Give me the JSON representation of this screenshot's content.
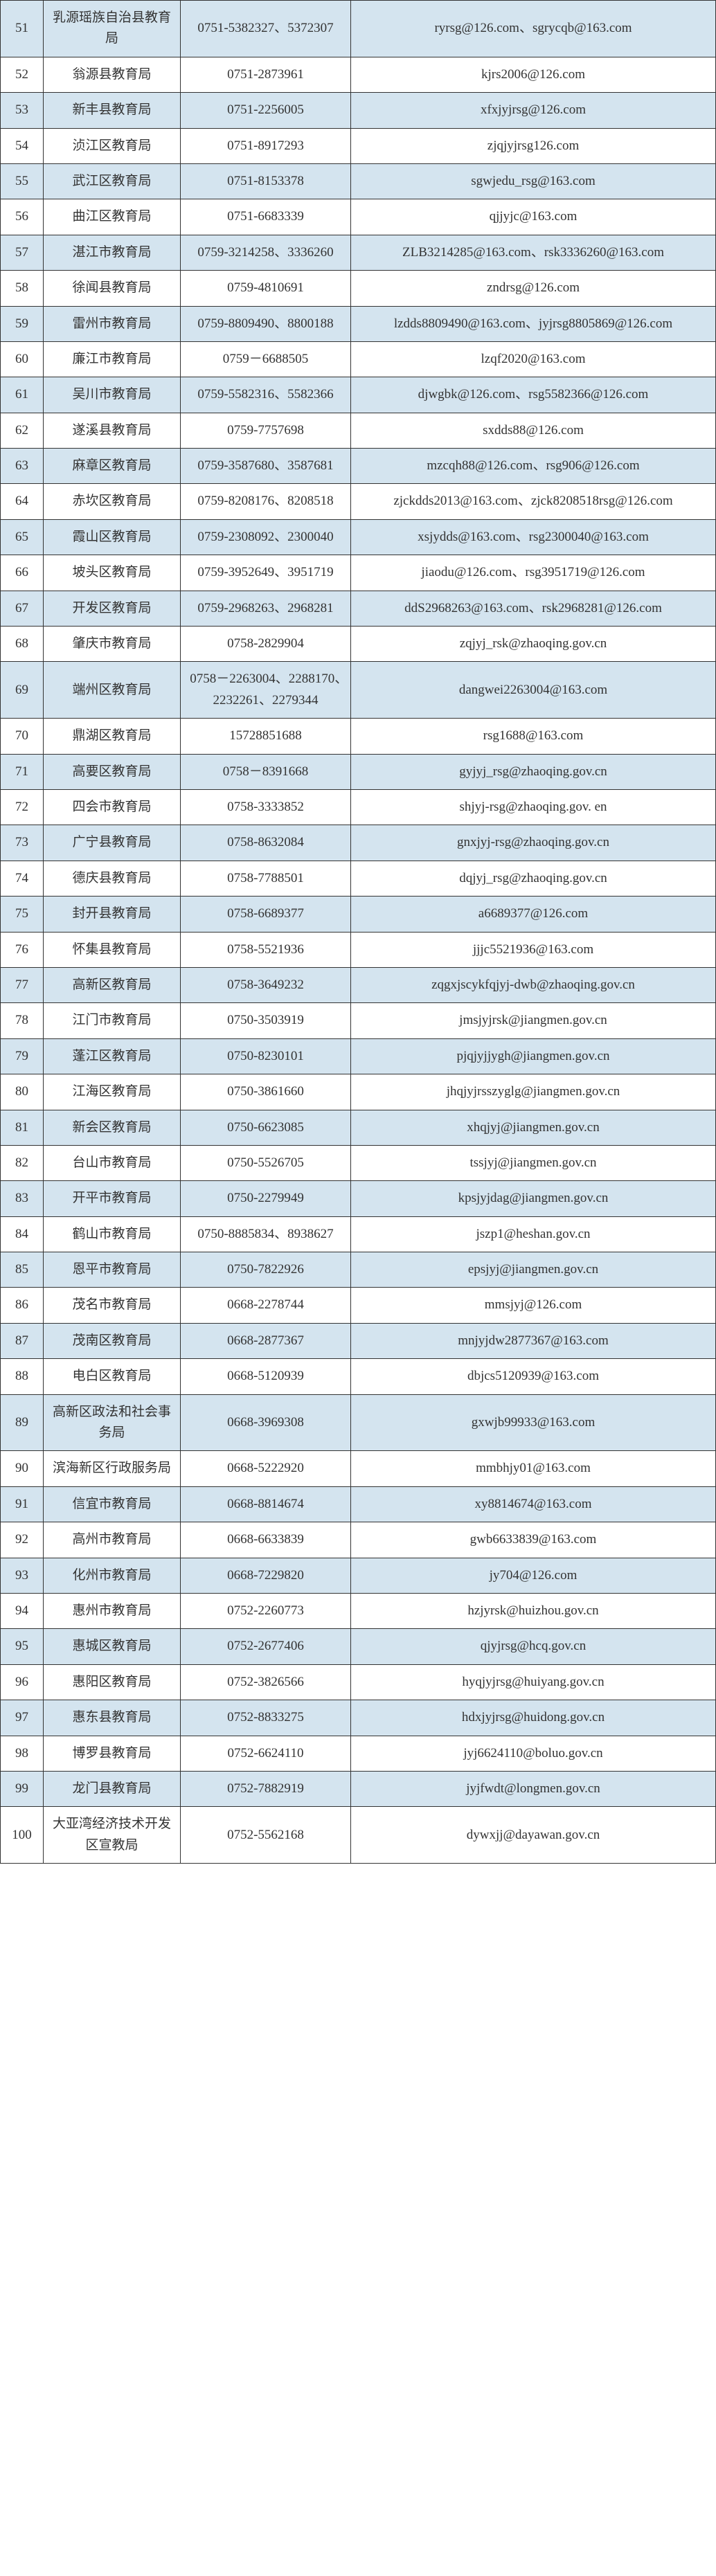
{
  "rows": [
    {
      "num": "51",
      "name": "乳源瑶族自治县教育局",
      "phone": "0751-5382327、5372307",
      "email": "ryrsg@126.com、sgrycqb@163.com"
    },
    {
      "num": "52",
      "name": "翁源县教育局",
      "phone": "0751-2873961",
      "email": "kjrs2006@126.com"
    },
    {
      "num": "53",
      "name": "新丰县教育局",
      "phone": "0751-2256005",
      "email": "xfxjyjrsg@126.com"
    },
    {
      "num": "54",
      "name": "浈江区教育局",
      "phone": "0751-8917293",
      "email": "zjqjyjrsg126.com"
    },
    {
      "num": "55",
      "name": "武江区教育局",
      "phone": "0751-8153378",
      "email": "sgwjedu_rsg@163.com"
    },
    {
      "num": "56",
      "name": "曲江区教育局",
      "phone": "0751-6683339",
      "email": "qjjyjc@163.com"
    },
    {
      "num": "57",
      "name": "湛江市教育局",
      "phone": "0759-3214258、3336260",
      "email": "ZLB3214285@163.com、rsk3336260@163.com"
    },
    {
      "num": "58",
      "name": "徐闻县教育局",
      "phone": "0759-4810691",
      "email": "zndrsg@126.com"
    },
    {
      "num": "59",
      "name": "雷州市教育局",
      "phone": "0759-8809490、8800188",
      "email": "lzdds8809490@163.com、jyjrsg8805869@126.com"
    },
    {
      "num": "60",
      "name": "廉江市教育局",
      "phone": "0759－6688505",
      "email": "lzqf2020@163.com"
    },
    {
      "num": "61",
      "name": "吴川市教育局",
      "phone": "0759-5582316、5582366",
      "email": "djwgbk@126.com、rsg5582366@126.com"
    },
    {
      "num": "62",
      "name": "遂溪县教育局",
      "phone": "0759-7757698",
      "email": "sxdds88@126.com"
    },
    {
      "num": "63",
      "name": "麻章区教育局",
      "phone": "0759-3587680、3587681",
      "email": "mzcqh88@126.com、rsg906@126.com"
    },
    {
      "num": "64",
      "name": "赤坎区教育局",
      "phone": "0759-8208176、8208518",
      "email": "zjckdds2013@163.com、zjck8208518rsg@126.com"
    },
    {
      "num": "65",
      "name": "霞山区教育局",
      "phone": "0759-2308092、2300040",
      "email": "xsjydds@163.com、rsg2300040@163.com"
    },
    {
      "num": "66",
      "name": "坡头区教育局",
      "phone": "0759-3952649、3951719",
      "email": "jiaodu@126.com、rsg3951719@126.com"
    },
    {
      "num": "67",
      "name": "开发区教育局",
      "phone": "0759-2968263、2968281",
      "email": "ddS2968263@163.com、rsk2968281@126.com"
    },
    {
      "num": "68",
      "name": "肇庆市教育局",
      "phone": "0758-2829904",
      "email": "zqjyj_rsk@zhaoqing.gov.cn"
    },
    {
      "num": "69",
      "name": "端州区教育局",
      "phone": "0758－2263004、2288170、　　2232261、2279344",
      "email": "dangwei2263004@163.com"
    },
    {
      "num": "70",
      "name": "鼎湖区教育局",
      "phone": "15728851688",
      "email": "rsg1688@163.com"
    },
    {
      "num": "71",
      "name": "高要区教育局",
      "phone": "0758－8391668",
      "email": "gyjyj_rsg@zhaoqing.gov.cn"
    },
    {
      "num": "72",
      "name": "四会市教育局",
      "phone": "0758-3333852",
      "email": "shjyj-rsg@zhaoqing.gov. en"
    },
    {
      "num": "73",
      "name": "广宁县教育局",
      "phone": "0758-8632084",
      "email": "gnxjyj-rsg@zhaoqing.gov.cn"
    },
    {
      "num": "74",
      "name": "德庆县教育局",
      "phone": "0758-7788501",
      "email": "dqjyj_rsg@zhaoqing.gov.cn"
    },
    {
      "num": "75",
      "name": "封开县教育局",
      "phone": "0758-6689377",
      "email": "a6689377@126.com"
    },
    {
      "num": "76",
      "name": "怀集县教育局",
      "phone": "0758-5521936",
      "email": "jjjc5521936@163.com"
    },
    {
      "num": "77",
      "name": "高新区教育局",
      "phone": "0758-3649232",
      "email": "zqgxjscykfqjyj-dwb@zhaoqing.gov.cn"
    },
    {
      "num": "78",
      "name": "江门市教育局",
      "phone": "0750-3503919",
      "email": "jmsjyjrsk@jiangmen.gov.cn"
    },
    {
      "num": "79",
      "name": "蓬江区教育局",
      "phone": "0750-8230101",
      "email": "pjqjyjjygh@jiangmen.gov.cn"
    },
    {
      "num": "80",
      "name": "江海区教育局",
      "phone": "0750-3861660",
      "email": "jhqjyjrsszyglg@jiangmen.gov.cn"
    },
    {
      "num": "81",
      "name": "新会区教育局",
      "phone": "0750-6623085",
      "email": "xhqjyj@jiangmen.gov.cn"
    },
    {
      "num": "82",
      "name": "台山市教育局",
      "phone": "0750-5526705",
      "email": "tssjyj@jiangmen.gov.cn"
    },
    {
      "num": "83",
      "name": "开平市教育局",
      "phone": "0750-2279949",
      "email": "kpsjyjdag@jiangmen.gov.cn"
    },
    {
      "num": "84",
      "name": "鹤山市教育局",
      "phone": "0750-8885834、8938627",
      "email": "jszp1@heshan.gov.cn"
    },
    {
      "num": "85",
      "name": "恩平市教育局",
      "phone": "0750-7822926",
      "email": "epsjyj@jiangmen.gov.cn"
    },
    {
      "num": "86",
      "name": "茂名市教育局",
      "phone": "0668-2278744",
      "email": "mmsjyj@126.com"
    },
    {
      "num": "87",
      "name": "茂南区教育局",
      "phone": "0668-2877367",
      "email": "mnjyjdw2877367@163.com"
    },
    {
      "num": "88",
      "name": "电白区教育局",
      "phone": "0668-5120939",
      "email": "dbjcs5120939@163.com"
    },
    {
      "num": "89",
      "name": "高新区政法和社会事务局",
      "phone": "0668-3969308",
      "email": "gxwjb99933@163.com"
    },
    {
      "num": "90",
      "name": "滨海新区行政服务局",
      "phone": "0668-5222920",
      "email": "mmbhjy01@163.com"
    },
    {
      "num": "91",
      "name": "信宜市教育局",
      "phone": "0668-8814674",
      "email": "xy8814674@163.com"
    },
    {
      "num": "92",
      "name": "高州市教育局",
      "phone": "0668-6633839",
      "email": "gwb6633839@163.com"
    },
    {
      "num": "93",
      "name": "化州市教育局",
      "phone": "0668-7229820",
      "email": "jy704@126.com"
    },
    {
      "num": "94",
      "name": "惠州市教育局",
      "phone": "0752-2260773",
      "email": "hzjyrsk@huizhou.gov.cn"
    },
    {
      "num": "95",
      "name": "惠城区教育局",
      "phone": "0752-2677406",
      "email": "qjyjrsg@hcq.gov.cn"
    },
    {
      "num": "96",
      "name": "惠阳区教育局",
      "phone": "0752-3826566",
      "email": "hyqjyjrsg@huiyang.gov.cn"
    },
    {
      "num": "97",
      "name": "惠东县教育局",
      "phone": "0752-8833275",
      "email": "hdxjyjrsg@huidong.gov.cn"
    },
    {
      "num": "98",
      "name": "博罗县教育局",
      "phone": "0752-6624110",
      "email": "jyj6624110@boluo.gov.cn"
    },
    {
      "num": "99",
      "name": "龙门县教育局",
      "phone": "0752-7882919",
      "email": "jyjfwdt@longmen.gov.cn"
    },
    {
      "num": "100",
      "name": "大亚湾经济技术开发区宣教局",
      "phone": "0752-5562168",
      "email": "dywxjj@dayawan.gov.cn"
    }
  ]
}
